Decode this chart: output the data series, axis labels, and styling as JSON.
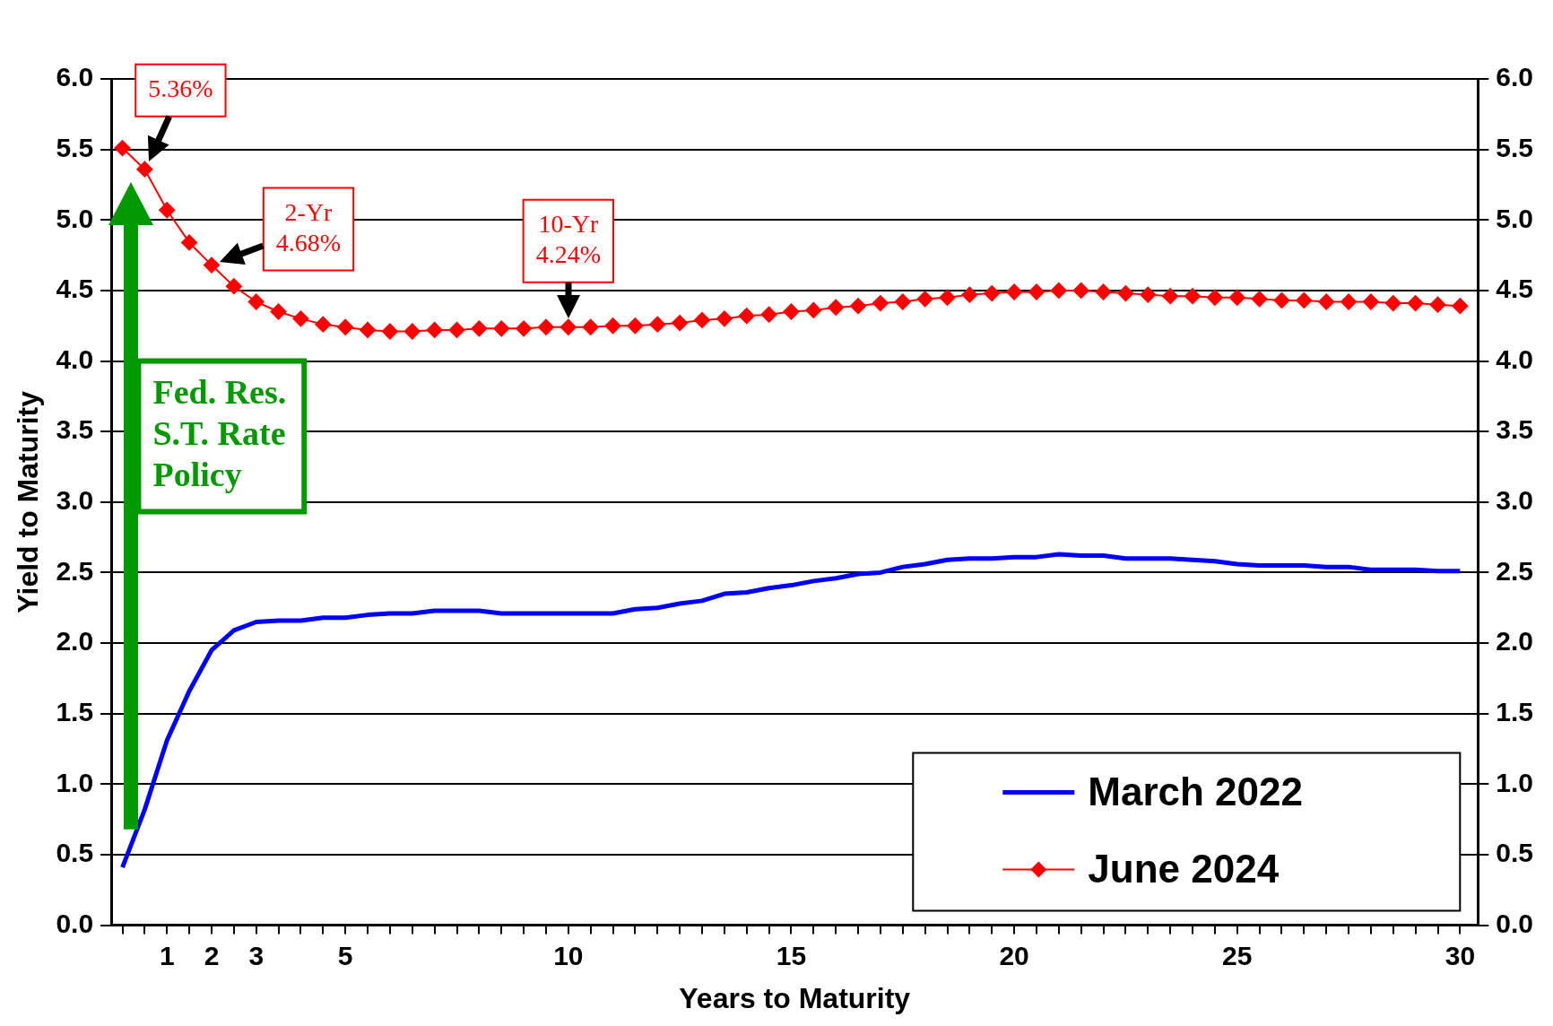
{
  "chart_data": {
    "type": "line",
    "xlabel": "Years to Maturity",
    "ylabel": "Yield to Maturity",
    "x": [
      0,
      0.5,
      1,
      1.5,
      2,
      2.5,
      3,
      3.5,
      4,
      4.5,
      5,
      5.5,
      6,
      6.5,
      7,
      7.5,
      8,
      8.5,
      9,
      9.5,
      10,
      10.5,
      11,
      11.5,
      12,
      12.5,
      13,
      13.5,
      14,
      14.5,
      15,
      15.5,
      16,
      16.5,
      17,
      17.5,
      18,
      18.5,
      19,
      19.5,
      20,
      20.5,
      21,
      21.5,
      22,
      22.5,
      23,
      23.5,
      24,
      24.5,
      25,
      25.5,
      26,
      26.5,
      27,
      27.5,
      28,
      28.5,
      29,
      29.5,
      30
    ],
    "series": [
      {
        "name": "March 2022",
        "color": "#0000ff",
        "marker": "none",
        "values": [
          0.41,
          0.82,
          1.31,
          1.66,
          1.95,
          2.09,
          2.15,
          2.16,
          2.16,
          2.18,
          2.18,
          2.2,
          2.21,
          2.21,
          2.23,
          2.23,
          2.23,
          2.21,
          2.21,
          2.21,
          2.21,
          2.21,
          2.21,
          2.24,
          2.25,
          2.28,
          2.3,
          2.35,
          2.36,
          2.39,
          2.41,
          2.44,
          2.46,
          2.49,
          2.5,
          2.54,
          2.56,
          2.59,
          2.6,
          2.6,
          2.61,
          2.61,
          2.63,
          2.62,
          2.62,
          2.6,
          2.6,
          2.6,
          2.59,
          2.58,
          2.56,
          2.55,
          2.55,
          2.55,
          2.54,
          2.54,
          2.52,
          2.52,
          2.52,
          2.51,
          2.51
        ]
      },
      {
        "name": "June 2024",
        "color": "#ff0000",
        "marker": "diamond",
        "values": [
          5.51,
          5.36,
          5.07,
          4.84,
          4.68,
          4.53,
          4.42,
          4.35,
          4.3,
          4.26,
          4.24,
          4.22,
          4.21,
          4.21,
          4.22,
          4.22,
          4.23,
          4.23,
          4.23,
          4.24,
          4.24,
          4.24,
          4.25,
          4.25,
          4.26,
          4.27,
          4.29,
          4.3,
          4.32,
          4.33,
          4.35,
          4.36,
          4.38,
          4.39,
          4.41,
          4.42,
          4.44,
          4.45,
          4.47,
          4.48,
          4.49,
          4.49,
          4.5,
          4.5,
          4.49,
          4.48,
          4.47,
          4.46,
          4.46,
          4.45,
          4.45,
          4.44,
          4.43,
          4.43,
          4.42,
          4.42,
          4.42,
          4.41,
          4.41,
          4.4,
          4.39
        ]
      }
    ],
    "xlim": [
      -0.25,
      30.4
    ],
    "xticks": [
      {
        "value": 0,
        "label": null
      },
      {
        "value": 0.5,
        "label": null
      },
      1,
      {
        "value": 1.5,
        "label": null
      },
      2,
      {
        "value": 2.5,
        "label": null
      },
      3,
      {
        "value": 3.5,
        "label": null
      },
      {
        "value": 4,
        "label": null
      },
      {
        "value": 4.5,
        "label": null
      },
      5,
      {
        "value": 5.5,
        "label": null
      },
      {
        "value": 6,
        "label": null
      },
      {
        "value": 6.5,
        "label": null
      },
      {
        "value": 7,
        "label": null
      },
      {
        "value": 7.5,
        "label": null
      },
      {
        "value": 8,
        "label": null
      },
      {
        "value": 8.5,
        "label": null
      },
      {
        "value": 9,
        "label": null
      },
      {
        "value": 9.5,
        "label": null
      },
      10,
      {
        "value": 10.5,
        "label": null
      },
      {
        "value": 11,
        "label": null
      },
      {
        "value": 11.5,
        "label": null
      },
      {
        "value": 12,
        "label": null
      },
      {
        "value": 12.5,
        "label": null
      },
      {
        "value": 13,
        "label": null
      },
      {
        "value": 13.5,
        "label": null
      },
      {
        "value": 14,
        "label": null
      },
      {
        "value": 14.5,
        "label": null
      },
      15,
      {
        "value": 15.5,
        "label": null
      },
      {
        "value": 16,
        "label": null
      },
      {
        "value": 16.5,
        "label": null
      },
      {
        "value": 17,
        "label": null
      },
      {
        "value": 17.5,
        "label": null
      },
      {
        "value": 18,
        "label": null
      },
      {
        "value": 18.5,
        "label": null
      },
      {
        "value": 19,
        "label": null
      },
      {
        "value": 19.5,
        "label": null
      },
      20,
      {
        "value": 20.5,
        "label": null
      },
      {
        "value": 21,
        "label": null
      },
      {
        "value": 21.5,
        "label": null
      },
      {
        "value": 22,
        "label": null
      },
      {
        "value": 22.5,
        "label": null
      },
      {
        "value": 23,
        "label": null
      },
      {
        "value": 23.5,
        "label": null
      },
      {
        "value": 24,
        "label": null
      },
      {
        "value": 24.5,
        "label": null
      },
      25,
      {
        "value": 25.5,
        "label": null
      },
      {
        "value": 26,
        "label": null
      },
      {
        "value": 26.5,
        "label": null
      },
      {
        "value": 27,
        "label": null
      },
      {
        "value": 27.5,
        "label": null
      },
      {
        "value": 28,
        "label": null
      },
      {
        "value": 28.5,
        "label": null
      },
      {
        "value": 29,
        "label": null
      },
      {
        "value": 29.5,
        "label": null
      },
      30
    ],
    "ylim": [
      0,
      6
    ],
    "yticks": [
      {
        "value": 0,
        "label": "0.0"
      },
      {
        "value": 0.5,
        "label": "0.5"
      },
      {
        "value": 1,
        "label": "1.0"
      },
      {
        "value": 1.5,
        "label": "1.5"
      },
      {
        "value": 2,
        "label": "2.0"
      },
      {
        "value": 2.5,
        "label": "2.5"
      },
      {
        "value": 3,
        "label": "3.0"
      },
      {
        "value": 3.5,
        "label": "3.5"
      },
      {
        "value": 4,
        "label": "4.0"
      },
      {
        "value": 4.5,
        "label": "4.5"
      },
      {
        "value": 5,
        "label": "5.0"
      },
      {
        "value": 5.5,
        "label": "5.5"
      },
      {
        "value": 6,
        "label": "6.0"
      }
    ],
    "y2lim": [
      0,
      6
    ],
    "y2ticks": [
      {
        "value": 0,
        "label": "0.0"
      },
      {
        "value": 0.5,
        "label": "0.5"
      },
      {
        "value": 1,
        "label": "1.0"
      },
      {
        "value": 1.5,
        "label": "1.5"
      },
      {
        "value": 2,
        "label": "2.0"
      },
      {
        "value": 2.5,
        "label": "2.5"
      },
      {
        "value": 3,
        "label": "3.0"
      },
      {
        "value": 3.5,
        "label": "3.5"
      },
      {
        "value": 4,
        "label": "4.0"
      },
      {
        "value": 4.5,
        "label": "4.5"
      },
      {
        "value": 5,
        "label": "5.0"
      },
      {
        "value": 5.5,
        "label": "5.5"
      },
      {
        "value": 6,
        "label": "6.0"
      }
    ],
    "grid": "y",
    "legend": "bottom right",
    "line_style": "solid",
    "annotations": [
      {
        "text": "5.36%",
        "x": 0.5,
        "y": 5.36
      },
      {
        "text": "2-Yr\n4.68%",
        "x": 2,
        "y": 4.68
      },
      {
        "text": "10-Yr\n4.24%",
        "x": 10,
        "y": 4.24
      },
      "Fed. Res.\nS.T. Rate\nPolicy"
    ]
  }
}
